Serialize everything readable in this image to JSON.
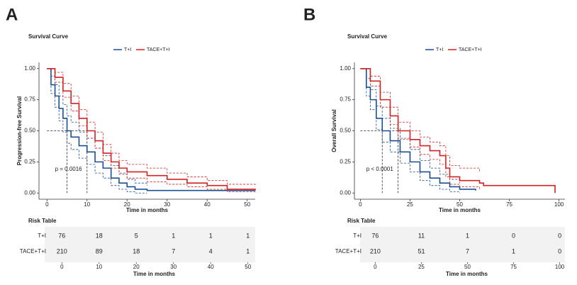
{
  "chart_data": [
    {
      "type": "line",
      "step": true,
      "panel_label": "A",
      "title": "Survival Curve",
      "xlabel": "Time in months",
      "ylabel": "Progression-free Survival",
      "annotation": "p = 0.0016",
      "xlim": [
        -2,
        52
      ],
      "ylim": [
        -0.05,
        1.05
      ],
      "xticks": [
        0,
        10,
        20,
        30,
        40,
        50
      ],
      "yticks": [
        {
          "value": 0,
          "label": "0.00"
        },
        {
          "value": 0.25,
          "label": "0.25"
        },
        {
          "value": 0.5,
          "label": "0.50"
        },
        {
          "value": 0.75,
          "label": "0.75"
        },
        {
          "value": 1,
          "label": "1.00"
        }
      ],
      "series": [
        {
          "name": "T+I",
          "color": "#1a4f91",
          "median": 5,
          "x": [
            0,
            1,
            2,
            3,
            4,
            5,
            6,
            8,
            10,
            12,
            14,
            16,
            18,
            20,
            22,
            25,
            52
          ],
          "values": [
            1,
            0.87,
            0.78,
            0.68,
            0.6,
            0.5,
            0.45,
            0.38,
            0.33,
            0.25,
            0.2,
            0.12,
            0.08,
            0.05,
            0.03,
            0.02,
            0.02
          ],
          "upper": [
            1,
            0.94,
            0.87,
            0.78,
            0.71,
            0.62,
            0.57,
            0.49,
            0.44,
            0.36,
            0.3,
            0.22,
            0.16,
            0.11,
            0.08,
            0.06,
            null
          ],
          "lower": [
            1,
            0.8,
            0.69,
            0.58,
            0.49,
            0.4,
            0.35,
            0.28,
            0.23,
            0.16,
            0.12,
            0.06,
            0.03,
            0.01,
            0,
            0,
            null
          ]
        },
        {
          "name": "TACE+T+I",
          "color": "#d42020",
          "median": 10,
          "x": [
            0,
            2,
            4,
            6,
            8,
            10,
            12,
            14,
            16,
            18,
            20,
            25,
            30,
            35,
            40,
            45,
            52
          ],
          "values": [
            1,
            0.93,
            0.82,
            0.72,
            0.6,
            0.5,
            0.42,
            0.32,
            0.25,
            0.2,
            0.17,
            0.14,
            0.11,
            0.08,
            0.06,
            0.03,
            0.02
          ],
          "upper": [
            1,
            0.97,
            0.88,
            0.78,
            0.67,
            0.57,
            0.49,
            0.39,
            0.32,
            0.26,
            0.23,
            0.2,
            0.16,
            0.13,
            0.1,
            0.07,
            0.05
          ],
          "lower": [
            1,
            0.89,
            0.77,
            0.66,
            0.54,
            0.44,
            0.36,
            0.26,
            0.2,
            0.15,
            0.12,
            0.09,
            0.07,
            0.05,
            0.03,
            0.01,
            0
          ]
        }
      ],
      "risk_table": {
        "title": "Risk Table",
        "xlabel": "Time in months",
        "xticks": [
          0,
          10,
          20,
          30,
          40,
          50
        ],
        "rows": [
          {
            "name": "T+I",
            "values": [
              76,
              18,
              5,
              1,
              1,
              1
            ]
          },
          {
            "name": "TACE+T+I",
            "values": [
              210,
              89,
              18,
              7,
              4,
              1
            ]
          }
        ]
      }
    },
    {
      "type": "line",
      "step": true,
      "panel_label": "B",
      "title": "Survival Curve",
      "xlabel": "Time in months",
      "ylabel": "Overall Survival",
      "annotation": "p < 0.0001",
      "xlim": [
        -3,
        103
      ],
      "ylim": [
        -0.05,
        1.05
      ],
      "xticks": [
        0,
        25,
        50,
        75,
        100
      ],
      "yticks": [
        {
          "value": 0,
          "label": "0.00"
        },
        {
          "value": 0.25,
          "label": "0.25"
        },
        {
          "value": 0.5,
          "label": "0.50"
        },
        {
          "value": 0.75,
          "label": "0.75"
        },
        {
          "value": 1,
          "label": "1.00"
        }
      ],
      "series": [
        {
          "name": "T+I",
          "color": "#1a4f91",
          "median": 11,
          "x": [
            0,
            3,
            5,
            8,
            11,
            15,
            20,
            25,
            30,
            35,
            40,
            45,
            50,
            58
          ],
          "values": [
            1,
            0.85,
            0.75,
            0.6,
            0.5,
            0.42,
            0.33,
            0.25,
            0.17,
            0.12,
            0.08,
            0.05,
            0.03,
            0.02
          ],
          "upper": [
            1,
            0.92,
            0.83,
            0.7,
            0.6,
            0.52,
            0.43,
            0.35,
            0.26,
            0.2,
            0.15,
            0.11,
            0.08,
            null
          ],
          "lower": [
            1,
            0.78,
            0.67,
            0.51,
            0.41,
            0.33,
            0.24,
            0.17,
            0.1,
            0.06,
            0.03,
            0.01,
            0,
            null
          ]
        },
        {
          "name": "TACE+T+I",
          "color": "#d42020",
          "median": 19,
          "x": [
            0,
            5,
            10,
            15,
            19,
            25,
            30,
            35,
            40,
            43,
            45,
            50,
            60,
            62,
            98
          ],
          "values": [
            1,
            0.9,
            0.75,
            0.62,
            0.5,
            0.43,
            0.38,
            0.34,
            0.3,
            0.2,
            0.13,
            0.1,
            0.08,
            0.06,
            0
          ],
          "upper": [
            1,
            0.94,
            0.81,
            0.69,
            0.57,
            0.5,
            0.45,
            0.41,
            0.38,
            0.3,
            0.22,
            0.2,
            0.17,
            null,
            null
          ],
          "lower": [
            1,
            0.86,
            0.69,
            0.55,
            0.44,
            0.37,
            0.31,
            0.27,
            0.23,
            0.13,
            0.07,
            0.05,
            0.03,
            null,
            null
          ]
        }
      ],
      "risk_table": {
        "title": "Risk Table",
        "xlabel": "Time in months",
        "xticks": [
          0,
          25,
          50,
          75,
          100
        ],
        "rows": [
          {
            "name": "T+I",
            "values": [
              76,
              11,
              1,
              0,
              0
            ]
          },
          {
            "name": "TACE+T+I",
            "values": [
              210,
              51,
              7,
              1,
              0
            ]
          }
        ]
      }
    }
  ]
}
